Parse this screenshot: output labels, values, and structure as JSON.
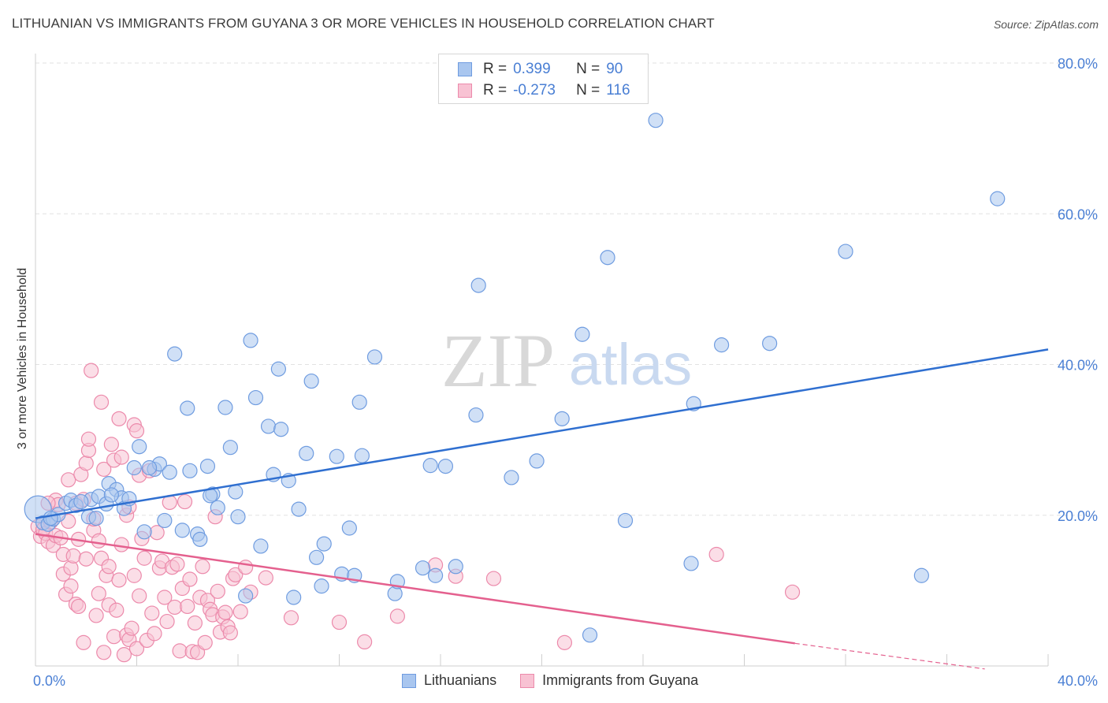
{
  "header": {
    "title": "LITHUANIAN VS IMMIGRANTS FROM GUYANA 3 OR MORE VEHICLES IN HOUSEHOLD CORRELATION CHART",
    "source": "Source: ZipAtlas.com"
  },
  "watermark": {
    "zip": "ZIP",
    "atlas": "atlas"
  },
  "legend": {
    "rows": [
      {
        "r_label": "R =",
        "r_value": "0.399",
        "n_label": "N =",
        "n_value": "90",
        "color": "#8fb4e8"
      },
      {
        "r_label": "R =",
        "r_value": "-0.273",
        "n_label": "N =",
        "n_value": "116",
        "color": "#f4a7bf"
      }
    ]
  },
  "bottom_legend": {
    "series1": "Lithuanians",
    "series2": "Immigrants from Guyana"
  },
  "colors": {
    "blue_fill": "#a9c6ef",
    "blue_stroke": "#6f9ce0",
    "blue_line": "#2f6fd0",
    "pink_fill": "#f8c2d3",
    "pink_stroke": "#ec8aab",
    "pink_line": "#e4608e",
    "axis_text": "#4a7fd4",
    "grid": "#e2e2e2"
  },
  "chart_data": {
    "type": "scatter",
    "title": "LITHUANIAN VS IMMIGRANTS FROM GUYANA 3 OR MORE VEHICLES IN HOUSEHOLD CORRELATION CHART",
    "xlabel": "",
    "ylabel": "3 or more Vehicles in Household",
    "xlim": [
      0,
      40
    ],
    "ylim": [
      0,
      80
    ],
    "x_tick_labels": [
      "0.0%",
      "40.0%"
    ],
    "y_tick_labels": [
      "20.0%",
      "40.0%",
      "60.0%",
      "80.0%"
    ],
    "y_ticks": [
      20,
      40,
      60,
      80
    ],
    "series": [
      {
        "name": "Lithuanians",
        "r": 0.399,
        "n": 90,
        "trend": {
          "x": [
            0,
            40
          ],
          "y": [
            19.6,
            42.0
          ]
        },
        "points": [
          [
            0.1,
            20.8
          ],
          [
            0.3,
            19.0
          ],
          [
            0.5,
            18.8
          ],
          [
            0.7,
            19.5
          ],
          [
            0.9,
            20.1
          ],
          [
            1.2,
            21.6
          ],
          [
            1.4,
            22.0
          ],
          [
            1.6,
            21.3
          ],
          [
            2.1,
            19.8
          ],
          [
            2.2,
            22.1
          ],
          [
            2.5,
            22.5
          ],
          [
            2.8,
            21.5
          ],
          [
            2.9,
            24.2
          ],
          [
            3.2,
            23.4
          ],
          [
            3.4,
            22.3
          ],
          [
            3.5,
            20.9
          ],
          [
            3.7,
            22.2
          ],
          [
            3.9,
            26.3
          ],
          [
            4.1,
            29.1
          ],
          [
            4.3,
            17.8
          ],
          [
            4.7,
            26.1
          ],
          [
            4.9,
            26.8
          ],
          [
            5.1,
            19.3
          ],
          [
            5.3,
            25.7
          ],
          [
            5.5,
            41.4
          ],
          [
            5.8,
            18.0
          ],
          [
            6.0,
            34.2
          ],
          [
            6.1,
            25.9
          ],
          [
            6.4,
            17.5
          ],
          [
            6.5,
            16.8
          ],
          [
            6.8,
            26.5
          ],
          [
            7.0,
            22.8
          ],
          [
            7.2,
            21.0
          ],
          [
            7.5,
            34.3
          ],
          [
            7.7,
            29.0
          ],
          [
            7.9,
            23.1
          ],
          [
            8.0,
            19.8
          ],
          [
            8.3,
            9.3
          ],
          [
            8.5,
            43.2
          ],
          [
            8.7,
            35.6
          ],
          [
            8.9,
            15.9
          ],
          [
            9.2,
            31.8
          ],
          [
            9.4,
            25.4
          ],
          [
            9.6,
            39.4
          ],
          [
            9.7,
            31.4
          ],
          [
            10.0,
            24.6
          ],
          [
            10.2,
            9.1
          ],
          [
            10.4,
            20.8
          ],
          [
            10.7,
            28.2
          ],
          [
            10.9,
            37.8
          ],
          [
            11.1,
            14.4
          ],
          [
            11.3,
            10.6
          ],
          [
            11.4,
            16.2
          ],
          [
            11.9,
            27.8
          ],
          [
            12.1,
            12.2
          ],
          [
            12.4,
            18.3
          ],
          [
            12.6,
            12.0
          ],
          [
            12.8,
            35.0
          ],
          [
            12.9,
            27.9
          ],
          [
            13.4,
            41.0
          ],
          [
            14.2,
            9.6
          ],
          [
            14.3,
            11.2
          ],
          [
            15.3,
            13.0
          ],
          [
            15.6,
            26.6
          ],
          [
            15.8,
            12.0
          ],
          [
            16.2,
            26.5
          ],
          [
            16.6,
            13.2
          ],
          [
            17.4,
            33.3
          ],
          [
            17.5,
            50.5
          ],
          [
            18.8,
            25.0
          ],
          [
            19.8,
            27.2
          ],
          [
            20.8,
            32.8
          ],
          [
            21.6,
            44.0
          ],
          [
            21.9,
            4.1
          ],
          [
            22.6,
            54.2
          ],
          [
            23.3,
            19.3
          ],
          [
            24.5,
            72.4
          ],
          [
            25.9,
            13.6
          ],
          [
            26.0,
            34.8
          ],
          [
            27.1,
            42.6
          ],
          [
            29.0,
            42.8
          ],
          [
            32.0,
            55.0
          ],
          [
            35.0,
            12.0
          ],
          [
            38.0,
            62.0
          ],
          [
            0.6,
            19.6
          ],
          [
            1.8,
            21.8
          ],
          [
            2.4,
            19.6
          ],
          [
            3.0,
            22.7
          ],
          [
            4.5,
            26.3
          ],
          [
            6.9,
            22.6
          ]
        ]
      },
      {
        "name": "Immigrants from Guyana",
        "r": -0.273,
        "n": 116,
        "trend": {
          "x": [
            0,
            30
          ],
          "y": [
            17.5,
            3.0
          ]
        },
        "trend_dashed": {
          "x": [
            30,
            37.5
          ],
          "y": [
            3.0,
            -0.4
          ]
        },
        "points": [
          [
            0.1,
            18.5
          ],
          [
            0.2,
            17.2
          ],
          [
            0.3,
            18.1
          ],
          [
            0.4,
            17.6
          ],
          [
            0.5,
            16.5
          ],
          [
            0.6,
            19.1
          ],
          [
            0.7,
            16.0
          ],
          [
            0.8,
            17.3
          ],
          [
            0.8,
            22.0
          ],
          [
            0.9,
            21.4
          ],
          [
            1.0,
            17.0
          ],
          [
            1.1,
            14.8
          ],
          [
            1.1,
            12.2
          ],
          [
            1.2,
            9.5
          ],
          [
            1.3,
            24.7
          ],
          [
            1.4,
            13.0
          ],
          [
            1.4,
            10.6
          ],
          [
            1.5,
            14.6
          ],
          [
            1.6,
            8.2
          ],
          [
            1.6,
            21.6
          ],
          [
            1.7,
            7.9
          ],
          [
            1.7,
            16.8
          ],
          [
            1.8,
            25.4
          ],
          [
            1.9,
            3.1
          ],
          [
            1.9,
            22.1
          ],
          [
            2.0,
            14.2
          ],
          [
            2.0,
            26.9
          ],
          [
            2.1,
            28.6
          ],
          [
            2.1,
            30.1
          ],
          [
            2.2,
            39.2
          ],
          [
            2.3,
            18.0
          ],
          [
            2.3,
            19.5
          ],
          [
            2.4,
            6.7
          ],
          [
            2.5,
            9.6
          ],
          [
            2.5,
            16.6
          ],
          [
            2.6,
            14.3
          ],
          [
            2.6,
            35.0
          ],
          [
            2.7,
            26.1
          ],
          [
            2.7,
            1.8
          ],
          [
            2.8,
            12.0
          ],
          [
            2.9,
            8.1
          ],
          [
            2.9,
            13.2
          ],
          [
            3.0,
            29.4
          ],
          [
            3.1,
            3.9
          ],
          [
            3.1,
            27.3
          ],
          [
            3.2,
            7.4
          ],
          [
            3.3,
            32.8
          ],
          [
            3.3,
            11.4
          ],
          [
            3.4,
            27.7
          ],
          [
            3.4,
            16.1
          ],
          [
            3.5,
            1.5
          ],
          [
            3.6,
            20.0
          ],
          [
            3.6,
            4.1
          ],
          [
            3.7,
            3.5
          ],
          [
            3.7,
            21.1
          ],
          [
            3.8,
            5.0
          ],
          [
            3.9,
            32.0
          ],
          [
            3.9,
            12.0
          ],
          [
            4.0,
            31.2
          ],
          [
            4.0,
            2.3
          ],
          [
            4.1,
            9.3
          ],
          [
            4.1,
            25.3
          ],
          [
            4.2,
            16.9
          ],
          [
            4.3,
            14.3
          ],
          [
            4.4,
            3.4
          ],
          [
            4.5,
            25.9
          ],
          [
            4.6,
            7.0
          ],
          [
            4.7,
            4.3
          ],
          [
            4.8,
            17.7
          ],
          [
            4.9,
            13.0
          ],
          [
            5.0,
            13.9
          ],
          [
            5.1,
            9.1
          ],
          [
            5.2,
            5.9
          ],
          [
            5.3,
            21.7
          ],
          [
            5.4,
            13.1
          ],
          [
            5.5,
            7.8
          ],
          [
            5.6,
            13.5
          ],
          [
            5.7,
            2.0
          ],
          [
            5.8,
            10.3
          ],
          [
            5.9,
            21.8
          ],
          [
            6.0,
            7.9
          ],
          [
            6.1,
            11.5
          ],
          [
            6.2,
            1.9
          ],
          [
            6.3,
            5.7
          ],
          [
            6.4,
            1.8
          ],
          [
            6.5,
            9.1
          ],
          [
            6.6,
            13.2
          ],
          [
            6.7,
            3.1
          ],
          [
            6.8,
            8.7
          ],
          [
            6.9,
            7.5
          ],
          [
            7.0,
            6.8
          ],
          [
            7.1,
            19.8
          ],
          [
            7.2,
            9.9
          ],
          [
            7.3,
            4.5
          ],
          [
            7.4,
            6.5
          ],
          [
            7.5,
            7.1
          ],
          [
            7.6,
            5.2
          ],
          [
            7.7,
            4.4
          ],
          [
            7.8,
            11.6
          ],
          [
            7.9,
            12.1
          ],
          [
            8.1,
            7.2
          ],
          [
            8.3,
            13.1
          ],
          [
            8.5,
            9.8
          ],
          [
            9.1,
            11.7
          ],
          [
            10.1,
            6.4
          ],
          [
            12.0,
            5.8
          ],
          [
            13.0,
            3.2
          ],
          [
            14.3,
            6.6
          ],
          [
            15.8,
            13.4
          ],
          [
            16.6,
            11.9
          ],
          [
            18.1,
            11.6
          ],
          [
            20.9,
            3.1
          ],
          [
            26.9,
            14.8
          ],
          [
            29.9,
            9.8
          ],
          [
            0.5,
            21.6
          ],
          [
            1.3,
            19.2
          ]
        ]
      }
    ]
  }
}
